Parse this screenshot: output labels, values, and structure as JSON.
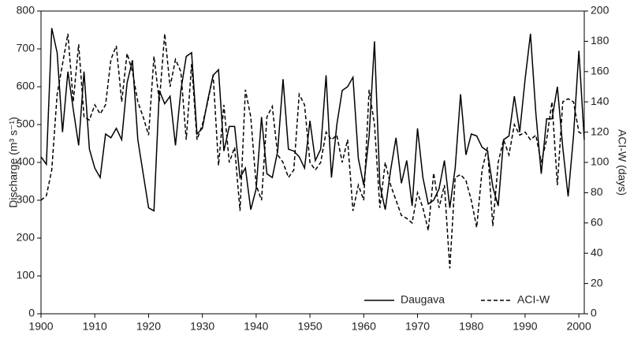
{
  "chart_data": {
    "type": "line",
    "ylabel": "Discharge (m³ s⁻¹)",
    "y2label": "ACI-W (days)",
    "x": [
      1900,
      1901,
      1902,
      1903,
      1904,
      1905,
      1906,
      1907,
      1908,
      1909,
      1910,
      1911,
      1912,
      1913,
      1914,
      1915,
      1916,
      1917,
      1918,
      1919,
      1920,
      1921,
      1922,
      1923,
      1924,
      1925,
      1926,
      1927,
      1928,
      1929,
      1930,
      1931,
      1932,
      1933,
      1934,
      1935,
      1936,
      1937,
      1938,
      1939,
      1940,
      1941,
      1942,
      1943,
      1944,
      1945,
      1946,
      1947,
      1948,
      1949,
      1950,
      1951,
      1952,
      1953,
      1954,
      1955,
      1956,
      1957,
      1958,
      1959,
      1960,
      1961,
      1962,
      1963,
      1964,
      1965,
      1966,
      1967,
      1968,
      1969,
      1970,
      1971,
      1972,
      1973,
      1974,
      1975,
      1976,
      1977,
      1978,
      1979,
      1980,
      1981,
      1982,
      1983,
      1984,
      1985,
      1986,
      1987,
      1988,
      1989,
      1990,
      1991,
      1992,
      1993,
      1994,
      1995,
      1996,
      1997,
      1998,
      1999,
      2000,
      2001
    ],
    "series": [
      {
        "name": "Daugava",
        "color": "#000000",
        "dash": false,
        "axis": "y",
        "values": [
          415,
          395,
          755,
          690,
          480,
          640,
          540,
          445,
          640,
          435,
          385,
          360,
          475,
          465,
          490,
          460,
          610,
          670,
          460,
          370,
          280,
          272,
          590,
          555,
          575,
          445,
          590,
          680,
          690,
          475,
          490,
          565,
          630,
          645,
          430,
          495,
          495,
          360,
          385,
          275,
          330,
          520,
          370,
          360,
          430,
          620,
          435,
          430,
          415,
          385,
          510,
          405,
          435,
          630,
          360,
          500,
          590,
          600,
          625,
          410,
          340,
          470,
          720,
          340,
          275,
          380,
          465,
          345,
          405,
          285,
          490,
          360,
          290,
          300,
          330,
          405,
          280,
          385,
          580,
          420,
          475,
          470,
          440,
          430,
          335,
          285,
          460,
          470,
          575,
          480,
          620,
          740,
          530,
          370,
          515,
          515,
          600,
          440,
          310,
          470,
          695,
          460
        ]
      },
      {
        "name": "ACI-W",
        "color": "#000000",
        "dash": true,
        "axis": "y2",
        "values": [
          75,
          78,
          95,
          145,
          165,
          185,
          140,
          178,
          130,
          128,
          138,
          132,
          138,
          168,
          177,
          140,
          172,
          160,
          140,
          130,
          118,
          170,
          140,
          185,
          150,
          168,
          160,
          115,
          165,
          115,
          125,
          140,
          158,
          98,
          138,
          100,
          110,
          68,
          148,
          130,
          85,
          75,
          130,
          137,
          105,
          100,
          90,
          95,
          145,
          138,
          100,
          95,
          100,
          120,
          115,
          118,
          100,
          115,
          68,
          85,
          75,
          148,
          125,
          70,
          100,
          85,
          75,
          65,
          63,
          60,
          80,
          70,
          55,
          93,
          70,
          85,
          30,
          90,
          92,
          88,
          75,
          57,
          95,
          110,
          58,
          100,
          115,
          105,
          125,
          118,
          120,
          115,
          118,
          100,
          115,
          140,
          85,
          140,
          142,
          140,
          120,
          118
        ]
      }
    ],
    "xlim": [
      1900,
      2001
    ],
    "xticks": [
      1900,
      1910,
      1920,
      1930,
      1940,
      1950,
      1960,
      1970,
      1980,
      1990,
      2000
    ],
    "ylim": [
      0,
      800
    ],
    "yticks": [
      0,
      100,
      200,
      300,
      400,
      500,
      600,
      700,
      800
    ],
    "y2lim": [
      0,
      200
    ],
    "y2ticks": [
      0,
      20,
      40,
      60,
      80,
      100,
      120,
      140,
      160,
      180,
      200
    ],
    "grid": false,
    "legend": "lower right"
  }
}
